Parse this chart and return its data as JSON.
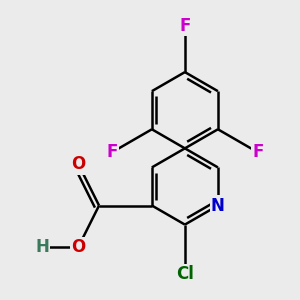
{
  "background_color": "#ebebeb",
  "bond_color": "#000000",
  "bond_width": 1.8,
  "atom_labels": {
    "N": {
      "color": "#0000cc",
      "fontsize": 12,
      "fontweight": "bold"
    },
    "O": {
      "color": "#cc0000",
      "fontsize": 12,
      "fontweight": "bold"
    },
    "Cl": {
      "color": "#006400",
      "fontsize": 12,
      "fontweight": "bold"
    },
    "F": {
      "color": "#cc00cc",
      "fontsize": 12,
      "fontweight": "bold"
    },
    "H": {
      "color": "#3a7a5a",
      "fontsize": 12,
      "fontweight": "bold"
    }
  },
  "fig_size": [
    3.0,
    3.0
  ],
  "dpi": 100
}
